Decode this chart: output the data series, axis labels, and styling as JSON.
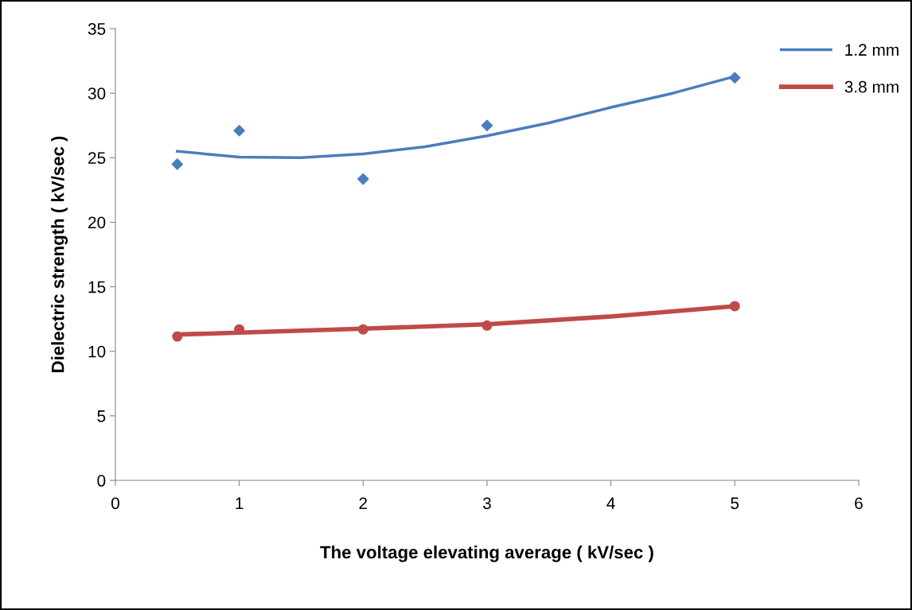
{
  "chart_data": {
    "type": "scatter",
    "xlabel": "The voltage elevating average ( kV/sec )",
    "ylabel": "Dielectric strength ( kV/sec )",
    "xlim": [
      0,
      6
    ],
    "xticks": [
      0,
      1,
      2,
      3,
      4,
      5,
      6
    ],
    "ylim": [
      0,
      35
    ],
    "yticks": [
      0,
      5,
      10,
      15,
      20,
      25,
      30,
      35
    ],
    "grid": false,
    "legend": "top right",
    "series": [
      {
        "marker": "diamond",
        "color": "#4a7ebb",
        "x": [
          0.5,
          1,
          2,
          3,
          5
        ],
        "values": [
          24.5,
          27.1,
          23.35,
          27.5,
          31.2
        ]
      },
      {
        "marker": "circle",
        "color": "#be4b48",
        "x": [
          0.5,
          1,
          2,
          3,
          5
        ],
        "values": [
          11.15,
          11.7,
          11.7,
          12.0,
          13.5
        ]
      },
      {
        "type": "line",
        "name": "1.2 mm",
        "marker": "none",
        "color": "#4a7ebb",
        "x": [
          0.5,
          1,
          1.5,
          2,
          2.5,
          3,
          3.5,
          4,
          4.5,
          5
        ],
        "values": [
          25.5,
          25.05,
          25.0,
          25.3,
          25.85,
          26.7,
          27.7,
          28.9,
          30.0,
          31.3
        ]
      },
      {
        "type": "line",
        "name": "3.8 mm",
        "marker": "none",
        "color": "#be4b48",
        "x": [
          0.5,
          1,
          2,
          3,
          4,
          5
        ],
        "values": [
          11.3,
          11.45,
          11.75,
          12.1,
          12.7,
          13.5
        ]
      }
    ]
  }
}
